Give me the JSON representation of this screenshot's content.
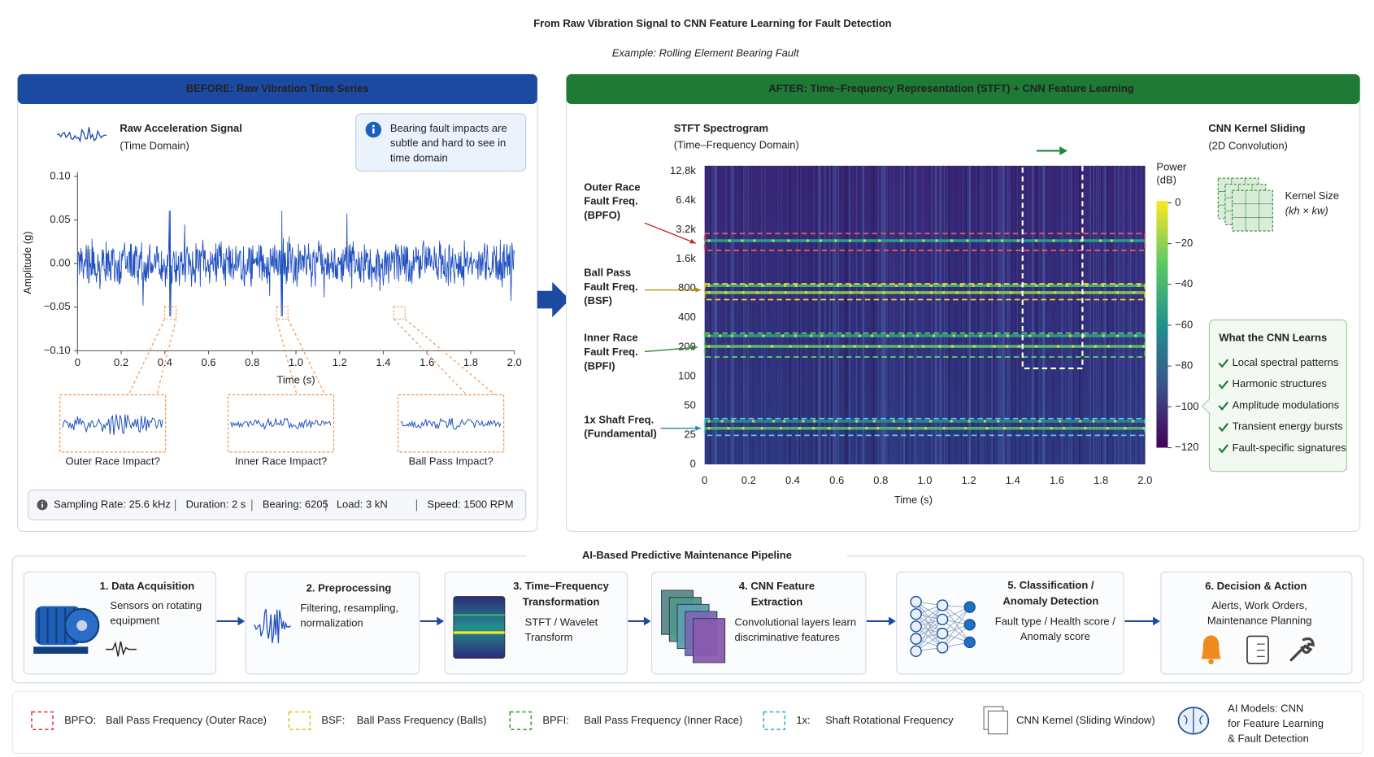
{
  "title": "From Raw Vibration Signal to CNN Feature Learning for Fault Detection",
  "subtitle": "Example: Rolling Element Bearing Fault",
  "before": {
    "header": "BEFORE: Raw Vibration Time Series",
    "signal_title": "Raw Acceleration Signal",
    "signal_subtitle": "(Time Domain)",
    "note": [
      "Bearing fault impacts are",
      "subtle and hard to see in",
      "time domain"
    ],
    "y_label": "Amplitude (g)",
    "yticks": [
      "0.10",
      "0.05",
      "0.00",
      "−0.05",
      "−0.10"
    ],
    "xticks": [
      "0",
      "0.2",
      "0.4",
      "0.6",
      "0.8",
      "1.0",
      "1.2",
      "1.4",
      "1.6",
      "1.8",
      "2.0"
    ],
    "x_label": "Time (s)",
    "zooms": [
      "Outer Race Impact?",
      "Inner Race Impact?",
      "Ball Pass Impact?"
    ],
    "info": [
      "Sampling Rate: 25.6 kHz",
      "Duration: 2 s",
      "Bearing: 6205",
      "Load: 3 kN",
      "Speed: 1500 RPM"
    ]
  },
  "after": {
    "header": "AFTER: Time–Frequency Representation (STFT) + CNN Feature Learning",
    "spec_title": "STFT Spectrogram",
    "spec_subtitle": "(Time–Frequency Domain)",
    "yticks": [
      "12.8k",
      "6.4k",
      "3.2k",
      "1.6k",
      "800",
      "400",
      "200",
      "100",
      "50",
      "25",
      "0"
    ],
    "xticks": [
      "0",
      "0.2",
      "0.4",
      "0.6",
      "0.8",
      "1.0",
      "1.2",
      "1.4",
      "1.6",
      "1.8",
      "2.0"
    ],
    "x_label": "Time (s)",
    "colorbar_label": [
      "Power",
      "(dB)"
    ],
    "colorbar_ticks": [
      "0",
      "−20",
      "−40",
      "−60",
      "−80",
      "−100",
      "−120"
    ],
    "annotations": [
      [
        "Outer Race",
        "Fault Freq.",
        "(BPFO)"
      ],
      [
        "Ball Pass",
        "Fault Freq.",
        "(BSF)"
      ],
      [
        "Inner Race",
        "Fault Freq.",
        "(BPFI)"
      ],
      [
        "1x Shaft Freq.",
        "(Fundamental)"
      ]
    ],
    "cnn_title": "CNN Kernel Sliding",
    "cnn_subtitle": "(2D Convolution)",
    "kernel_label": "Kernel Size",
    "kernel_formula": "(kh × kw)",
    "learns_title": "What the CNN Learns",
    "learns": [
      "Local spectral patterns",
      "Harmonic structures",
      "Amplitude modulations",
      "Transient energy bursts",
      "Fault-specific signatures"
    ]
  },
  "pipeline": {
    "title": "AI-Based Predictive Maintenance Pipeline",
    "steps": [
      {
        "title": [
          "1. Data Acquisition"
        ],
        "desc": [
          "Sensors on rotating",
          "equipment"
        ]
      },
      {
        "title": [
          "2. Preprocessing"
        ],
        "desc": [
          "Filtering, resampling,",
          "normalization"
        ]
      },
      {
        "title": [
          "3. Time–Frequency",
          "Transformation"
        ],
        "desc": [
          "STFT / Wavelet",
          "Transform"
        ]
      },
      {
        "title": [
          "4. CNN Feature",
          "Extraction"
        ],
        "desc": [
          "Convolutional layers learn",
          "discriminative features"
        ]
      },
      {
        "title": [
          "5. Classification /",
          "Anomaly Detection"
        ],
        "desc": [
          "Fault type / Health score /",
          "Anomaly score"
        ]
      },
      {
        "title": [
          "6. Decision & Action"
        ],
        "desc": [
          "Alerts, Work Orders,",
          "Maintenance Planning"
        ]
      }
    ]
  },
  "legend": [
    {
      "key": "BPFO:",
      "text": "Ball Pass Frequency (Outer Race)"
    },
    {
      "key": "BSF:",
      "text": "Ball Pass Frequency (Balls)"
    },
    {
      "key": "BPFI:",
      "text": "Ball Pass Frequency (Inner Race)"
    },
    {
      "key": "1x:",
      "text": "Shaft Rotational Frequency"
    },
    {
      "text": "CNN Kernel (Sliding Window)"
    }
  ],
  "ai_models": [
    "AI Models: CNN",
    "for Feature Learning",
    "& Fault Detection"
  ]
}
